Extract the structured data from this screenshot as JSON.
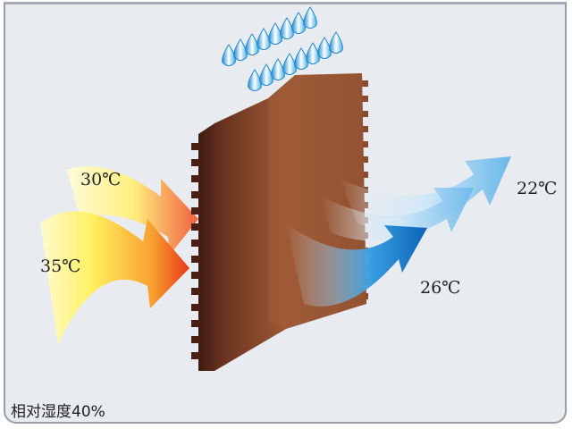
{
  "labels": {
    "inlet_top": "30℃",
    "inlet_bottom": "35℃",
    "outlet_bottom": "26℃",
    "outlet_top": "22℃"
  },
  "caption": "相对湿度40%",
  "colors": {
    "background": "#e8ebef",
    "pad_brown": "#8a4a2c",
    "hot_yellow": "#fff27a",
    "hot_red": "#e8401a",
    "cool_blue": "#1a7fd0",
    "water_drop": "#3aa6e0"
  }
}
